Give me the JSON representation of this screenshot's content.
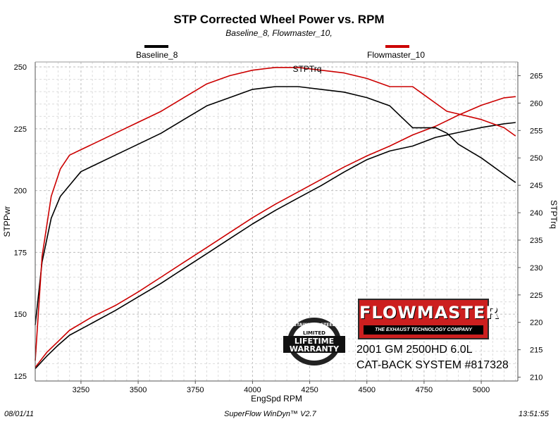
{
  "header": {
    "title": "STP Corrected Wheel Power vs. RPM",
    "subtitle": "Baseline_8, Flowmaster_10,"
  },
  "legend": [
    {
      "label": "Baseline_8",
      "color": "#000000"
    },
    {
      "label": "Flowmaster_10",
      "color": "#cc0000"
    }
  ],
  "footer": {
    "date": "08/01/11",
    "software": "SuperFlow WinDyn™ V2.7",
    "time": "13:51:55"
  },
  "badge": {
    "brand": "FLOWMASTER",
    "tagline": "THE EXHAUST TECHNOLOGY COMPANY",
    "product_line1": "2001 GM 2500HD 6.0L",
    "product_line2": "CAT-BACK SYSTEM #817328",
    "lifetime_text_top": "STAINLESS STEEL",
    "lifetime_text_mid": "LIMITED",
    "lifetime_text_main1": "LIFETIME",
    "lifetime_text_main2": "WARRANTY"
  },
  "chart_data": {
    "type": "line",
    "title": "STP Corrected Wheel Power vs. RPM",
    "subtitle": "Baseline_8, Flowmaster_10,",
    "xlabel": "EngSpd  RPM",
    "ylabel": "STPPwr",
    "y2label": "STPTrq",
    "trq_curve_label": "STPTrq",
    "xlim": [
      3050,
      5160
    ],
    "ylim": [
      123,
      252
    ],
    "y2lim": [
      209.3,
      267.5
    ],
    "x_ticks": [
      3250,
      3500,
      3750,
      4000,
      4250,
      4500,
      4750,
      5000
    ],
    "y_ticks": [
      125,
      150,
      175,
      200,
      225,
      250
    ],
    "y2_ticks": [
      210,
      215,
      220,
      225,
      230,
      235,
      240,
      245,
      250,
      255,
      260,
      265
    ],
    "grid": true,
    "legend_position": "top",
    "series": [
      {
        "name": "Baseline_8",
        "quantity": "STPPwr",
        "axis": "left",
        "color": "#000000",
        "x": [
          3050,
          3100,
          3150,
          3200,
          3300,
          3400,
          3500,
          3600,
          3700,
          3800,
          3900,
          4000,
          4100,
          4200,
          4300,
          4400,
          4500,
          4600,
          4700,
          4800,
          4900,
          5000,
          5100,
          5150
        ],
        "y": [
          128,
          133,
          137.5,
          141.5,
          146.5,
          151.5,
          157,
          162.5,
          168.5,
          174.5,
          180.5,
          186.5,
          192,
          197,
          202,
          207.5,
          212.5,
          216,
          218,
          221.5,
          223.5,
          225.5,
          227,
          227.5
        ]
      },
      {
        "name": "Flowmaster_10",
        "quantity": "STPPwr",
        "axis": "left",
        "color": "#cc0000",
        "x": [
          3050,
          3100,
          3150,
          3200,
          3300,
          3400,
          3500,
          3600,
          3700,
          3800,
          3900,
          4000,
          4100,
          4200,
          4300,
          4400,
          4500,
          4600,
          4700,
          4800,
          4900,
          5000,
          5100,
          5150
        ],
        "y": [
          128.5,
          134.5,
          139,
          143.5,
          149,
          153.5,
          159,
          165,
          171,
          177,
          183,
          189,
          194.5,
          199.5,
          204.5,
          209.5,
          214,
          218,
          222.5,
          226,
          230.5,
          234.5,
          237.5,
          238
        ]
      },
      {
        "name": "Baseline_8",
        "quantity": "STPTrq",
        "axis": "right",
        "color": "#000000",
        "x": [
          3050,
          3080,
          3120,
          3160,
          3200,
          3250,
          3300,
          3400,
          3500,
          3600,
          3700,
          3800,
          3900,
          4000,
          4100,
          4200,
          4300,
          4400,
          4500,
          4600,
          4650,
          4700,
          4750,
          4800,
          4850,
          4900,
          5000,
          5100,
          5150
        ],
        "y": [
          219.5,
          231,
          239,
          243,
          245,
          247.5,
          248.5,
          250.5,
          252.5,
          254.5,
          257,
          259.5,
          261,
          262.5,
          263,
          263,
          262.5,
          262,
          261,
          259.5,
          257.5,
          255.5,
          255.5,
          255.5,
          254.5,
          252.5,
          250,
          247,
          245.5
        ]
      },
      {
        "name": "Flowmaster_10",
        "quantity": "STPTrq",
        "axis": "right",
        "color": "#cc0000",
        "x": [
          3050,
          3080,
          3120,
          3160,
          3200,
          3250,
          3300,
          3400,
          3500,
          3600,
          3700,
          3800,
          3900,
          4000,
          4100,
          4200,
          4300,
          4400,
          4500,
          4600,
          4650,
          4700,
          4750,
          4800,
          4850,
          4900,
          5000,
          5100,
          5150
        ],
        "y": [
          213,
          232,
          243,
          248,
          250.5,
          251.5,
          252.5,
          254.5,
          256.5,
          258.5,
          261,
          263.5,
          265,
          266,
          266.5,
          266.5,
          266,
          265.5,
          264.5,
          263,
          263,
          263,
          261.5,
          260,
          258.5,
          258,
          257,
          255.5,
          254
        ]
      }
    ]
  }
}
